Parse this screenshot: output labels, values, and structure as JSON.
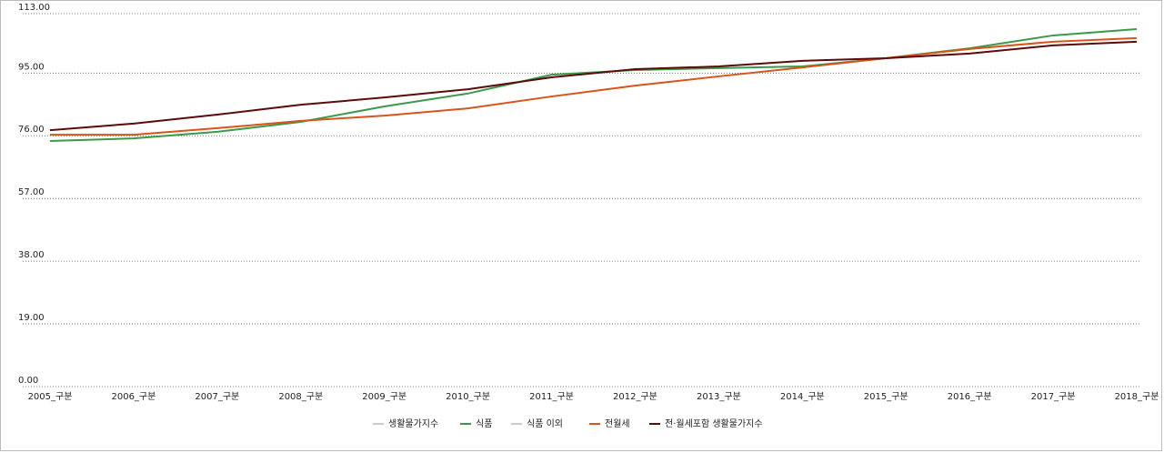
{
  "chart_data": {
    "type": "line",
    "categories": [
      "2005_구분",
      "2006_구분",
      "2007_구분",
      "2008_구분",
      "2009_구분",
      "2010_구분",
      "2011_구분",
      "2012_구분",
      "2013_구분",
      "2014_구분",
      "2015_구분",
      "2016_구분",
      "2017_구분",
      "2018_구분"
    ],
    "series": [
      {
        "name": "생활물가지수",
        "color": "#cccccc",
        "visible": false,
        "values": [
          null,
          null,
          null,
          null,
          null,
          null,
          null,
          null,
          null,
          null,
          null,
          null,
          null,
          null
        ]
      },
      {
        "name": "식품",
        "color": "#3a9a48",
        "visible": true,
        "values": [
          74.4,
          75.2,
          77.2,
          80.2,
          84.9,
          88.8,
          94.5,
          95.9,
          96.5,
          97.0,
          99.5,
          102.5,
          106.4,
          108.3
        ]
      },
      {
        "name": "식품 이외",
        "color": "#cccccc",
        "visible": false,
        "values": [
          null,
          null,
          null,
          null,
          null,
          null,
          null,
          null,
          null,
          null,
          null,
          null,
          null,
          null
        ]
      },
      {
        "name": "전월세",
        "color": "#d9541a",
        "visible": true,
        "values": [
          76.3,
          76.3,
          78.3,
          80.5,
          82.1,
          84.3,
          87.9,
          91.2,
          94.0,
          96.7,
          99.5,
          102.3,
          104.5,
          105.6
        ]
      },
      {
        "name": "전·월세포함 생활물가지수",
        "color": "#5c0a0a",
        "visible": true,
        "values": [
          77.7,
          79.7,
          82.4,
          85.4,
          87.6,
          90.1,
          93.7,
          96.2,
          97.0,
          98.7,
          99.5,
          100.9,
          103.4,
          104.5
        ]
      }
    ],
    "ylim": [
      0,
      113
    ],
    "yticks": [
      {
        "value": 0,
        "label": "0.00"
      },
      {
        "value": 19,
        "label": "19.00"
      },
      {
        "value": 38,
        "label": "38.00"
      },
      {
        "value": 57,
        "label": "57.00"
      },
      {
        "value": 76,
        "label": "76.00"
      },
      {
        "value": 95,
        "label": "95.00"
      },
      {
        "value": 113,
        "label": "113.00"
      }
    ],
    "grid": true,
    "legend": "bottom"
  }
}
